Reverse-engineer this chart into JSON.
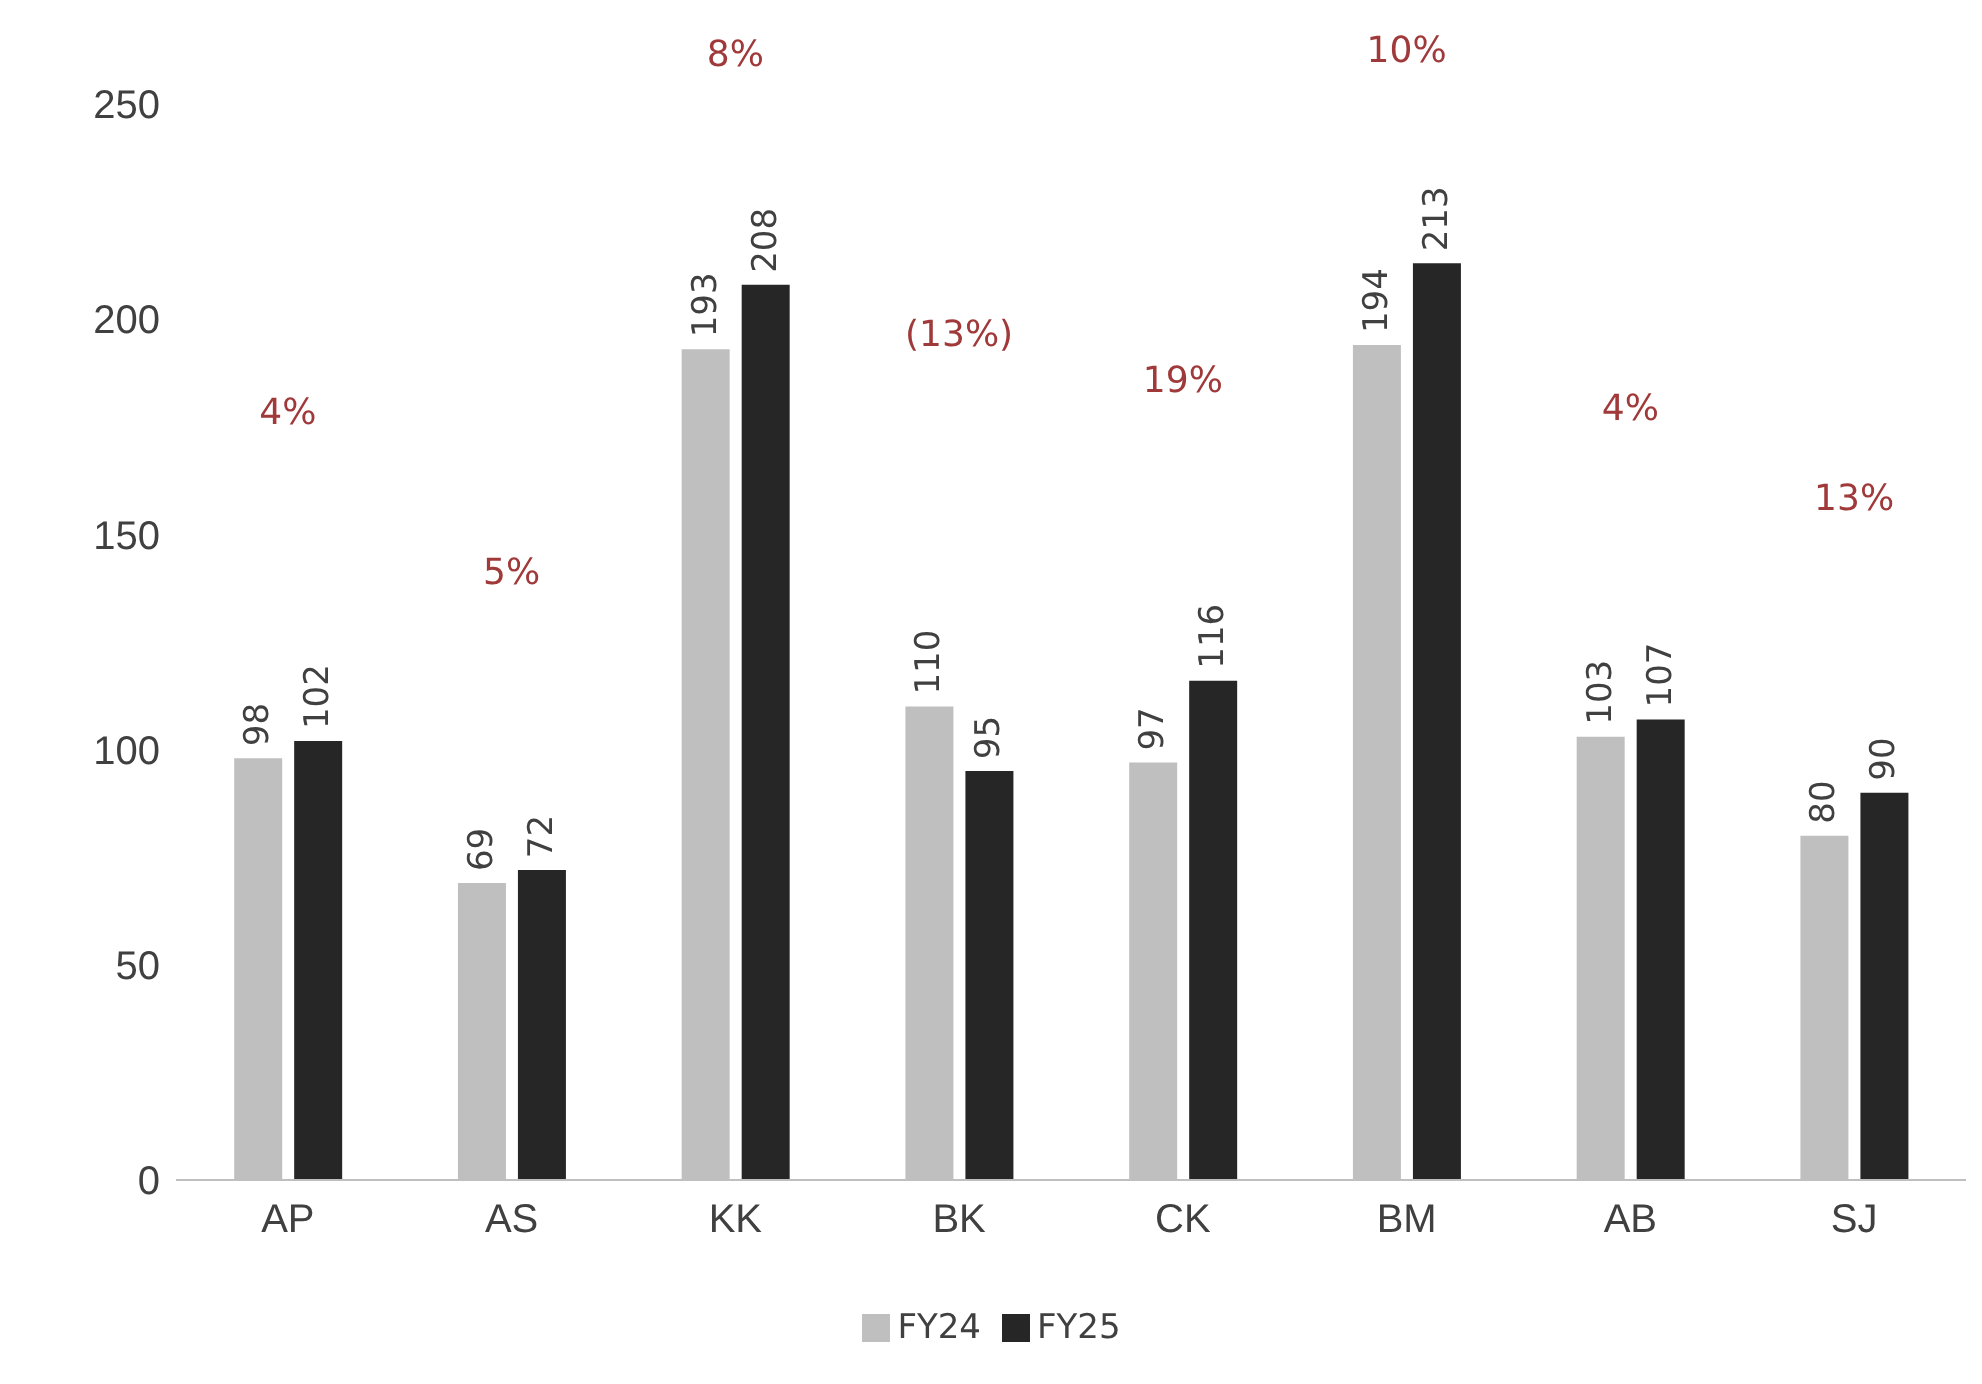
{
  "chart_data": {
    "type": "bar",
    "categories": [
      "AP",
      "AS",
      "KK",
      "BK",
      "CK",
      "BM",
      "AB",
      "SJ"
    ],
    "series": [
      {
        "name": "FY24",
        "color": "#bfbfbf",
        "values": [
          98,
          69,
          193,
          110,
          97,
          194,
          103,
          80
        ]
      },
      {
        "name": "FY25",
        "color": "#262626",
        "values": [
          102,
          72,
          208,
          95,
          116,
          213,
          107,
          90
        ]
      }
    ],
    "ylim": [
      0,
      250
    ],
    "yticks": [
      0,
      50,
      100,
      150,
      200,
      250
    ],
    "grid": false,
    "legend": "bottom",
    "data_labels": true,
    "annotations": [
      "4%",
      "5%",
      "8%",
      "(13%)",
      "19%",
      "10%",
      "4%",
      "13%"
    ]
  }
}
